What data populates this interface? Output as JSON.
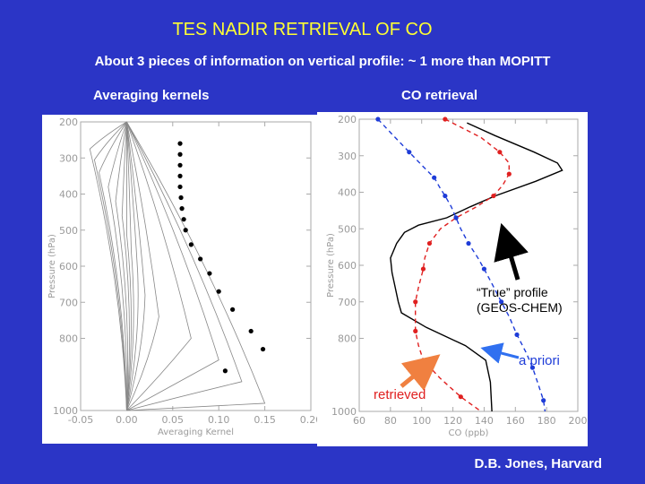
{
  "title": "TES NADIR RETRIEVAL OF CO",
  "subtitle": "About 3 pieces of information on vertical profile: ~ 1 more than MOPITT",
  "left_label": "Averaging kernels",
  "right_label": "CO retrieval",
  "credit": "D.B. Jones, Harvard",
  "annotations": {
    "true_profile": "“True” profile",
    "true_profile_source": "(GEOS-CHEM)",
    "a_priori": "a priori",
    "retrieved": "retrieved"
  },
  "colors": {
    "background": "#2b35c6",
    "title": "#ffff33",
    "a_priori": "#1e3cd8",
    "retrieved": "#e02020",
    "true_profile": "#000000",
    "retrieved_arrow": "#f08040",
    "a_priori_arrow": "#3070f0"
  },
  "chart_data": [
    {
      "type": "line",
      "xlabel": "Averaging Kernel",
      "ylabel": "Pressure (hPa)",
      "xlim": [
        -0.05,
        0.2
      ],
      "ylim": [
        1000,
        200
      ],
      "xticks": [
        -0.05,
        0.0,
        0.05,
        0.1,
        0.15,
        0.2
      ],
      "xtick_labels": [
        "-0.05",
        "0.00",
        "0.05",
        "0.10",
        "0.15",
        "0.20"
      ],
      "yticks": [
        200,
        300,
        400,
        500,
        600,
        700,
        800,
        1000
      ],
      "ytick_labels": [
        "200",
        "300",
        "400",
        "500",
        "600",
        "700",
        "800",
        "1000"
      ],
      "grid": false,
      "kernel_peaks": [
        {
          "p": 275,
          "x": -0.04
        },
        {
          "p": 305,
          "x": -0.035
        },
        {
          "p": 340,
          "x": -0.03
        },
        {
          "p": 380,
          "x": -0.02
        },
        {
          "p": 420,
          "x": -0.012
        },
        {
          "p": 460,
          "x": -0.005
        },
        {
          "p": 510,
          "x": 0.0
        },
        {
          "p": 560,
          "x": 0.005
        },
        {
          "p": 620,
          "x": 0.012
        },
        {
          "p": 680,
          "x": 0.02
        },
        {
          "p": 740,
          "x": 0.035
        },
        {
          "p": 800,
          "x": 0.07
        },
        {
          "p": 860,
          "x": 0.1
        },
        {
          "p": 920,
          "x": 0.125
        },
        {
          "p": 980,
          "x": 0.15
        }
      ],
      "diagonal_points": [
        {
          "x": 0.058,
          "p": 260
        },
        {
          "x": 0.058,
          "p": 290
        },
        {
          "x": 0.058,
          "p": 320
        },
        {
          "x": 0.058,
          "p": 350
        },
        {
          "x": 0.058,
          "p": 380
        },
        {
          "x": 0.059,
          "p": 410
        },
        {
          "x": 0.06,
          "p": 440
        },
        {
          "x": 0.062,
          "p": 470
        },
        {
          "x": 0.064,
          "p": 500
        },
        {
          "x": 0.07,
          "p": 540
        },
        {
          "x": 0.08,
          "p": 580
        },
        {
          "x": 0.09,
          "p": 620
        },
        {
          "x": 0.1,
          "p": 670
        },
        {
          "x": 0.115,
          "p": 720
        },
        {
          "x": 0.135,
          "p": 780
        },
        {
          "x": 0.148,
          "p": 830
        },
        {
          "x": 0.107,
          "p": 890
        }
      ]
    },
    {
      "type": "line",
      "xlabel": "CO (ppb)",
      "ylabel": "Pressure (hPa)",
      "xlim": [
        60,
        200
      ],
      "ylim": [
        1000,
        200
      ],
      "xticks": [
        60,
        80,
        100,
        120,
        140,
        160,
        180,
        200
      ],
      "xtick_labels": [
        "60",
        "80",
        "100",
        "120",
        "140",
        "160",
        "180",
        "200"
      ],
      "yticks": [
        200,
        300,
        400,
        500,
        600,
        700,
        800,
        1000
      ],
      "ytick_labels": [
        "200",
        "300",
        "400",
        "500",
        "600",
        "700",
        "800",
        "1000"
      ],
      "grid": false,
      "series": [
        {
          "name": "“True” profile",
          "style": "solid",
          "markers": false,
          "color": "#000000",
          "points": [
            [
              129,
              210
            ],
            [
              147,
              245
            ],
            [
              172,
              290
            ],
            [
              187,
              320
            ],
            [
              190,
              340
            ],
            [
              173,
              370
            ],
            [
              147,
              410
            ],
            [
              131,
              440
            ],
            [
              116,
              470
            ],
            [
              98,
              490
            ],
            [
              89,
              510
            ],
            [
              84,
              540
            ],
            [
              80,
              580
            ],
            [
              81,
              620
            ],
            [
              83,
              660
            ],
            [
              85,
              700
            ],
            [
              87,
              730
            ],
            [
              103,
              770
            ],
            [
              128,
              820
            ],
            [
              141,
              860
            ],
            [
              144,
              920
            ],
            [
              145,
              1000
            ]
          ]
        },
        {
          "name": "retrieved",
          "style": "dashed",
          "markers": true,
          "color": "#e02020",
          "points": [
            [
              115,
              200
            ],
            [
              138,
              250
            ],
            [
              150,
              290
            ],
            [
              156,
              320
            ],
            [
              156,
              350
            ],
            [
              152,
              380
            ],
            [
              146,
              410
            ],
            [
              135,
              440
            ],
            [
              122,
              470
            ],
            [
              112,
              500
            ],
            [
              105,
              540
            ],
            [
              102,
              580
            ],
            [
              101,
              610
            ],
            [
              98,
              660
            ],
            [
              96,
              700
            ],
            [
              96,
              740
            ],
            [
              96,
              780
            ],
            [
              98,
              820
            ],
            [
              101,
              860
            ],
            [
              112,
              910
            ],
            [
              125,
              960
            ],
            [
              138,
              1000
            ]
          ]
        },
        {
          "name": "a priori",
          "style": "dashed",
          "markers": true,
          "color": "#1e3cd8",
          "points": [
            [
              72,
              200
            ],
            [
              83,
              250
            ],
            [
              92,
              290
            ],
            [
              101,
              330
            ],
            [
              108,
              360
            ],
            [
              112,
              390
            ],
            [
              115,
              410
            ],
            [
              119,
              440
            ],
            [
              122,
              470
            ],
            [
              125,
              500
            ],
            [
              130,
              540
            ],
            [
              136,
              580
            ],
            [
              140,
              610
            ],
            [
              145,
              650
            ],
            [
              151,
              700
            ],
            [
              156,
              740
            ],
            [
              161,
              790
            ],
            [
              167,
              840
            ],
            [
              171,
              880
            ],
            [
              175,
              930
            ],
            [
              178,
              970
            ],
            [
              179,
              1000
            ]
          ]
        }
      ]
    }
  ]
}
